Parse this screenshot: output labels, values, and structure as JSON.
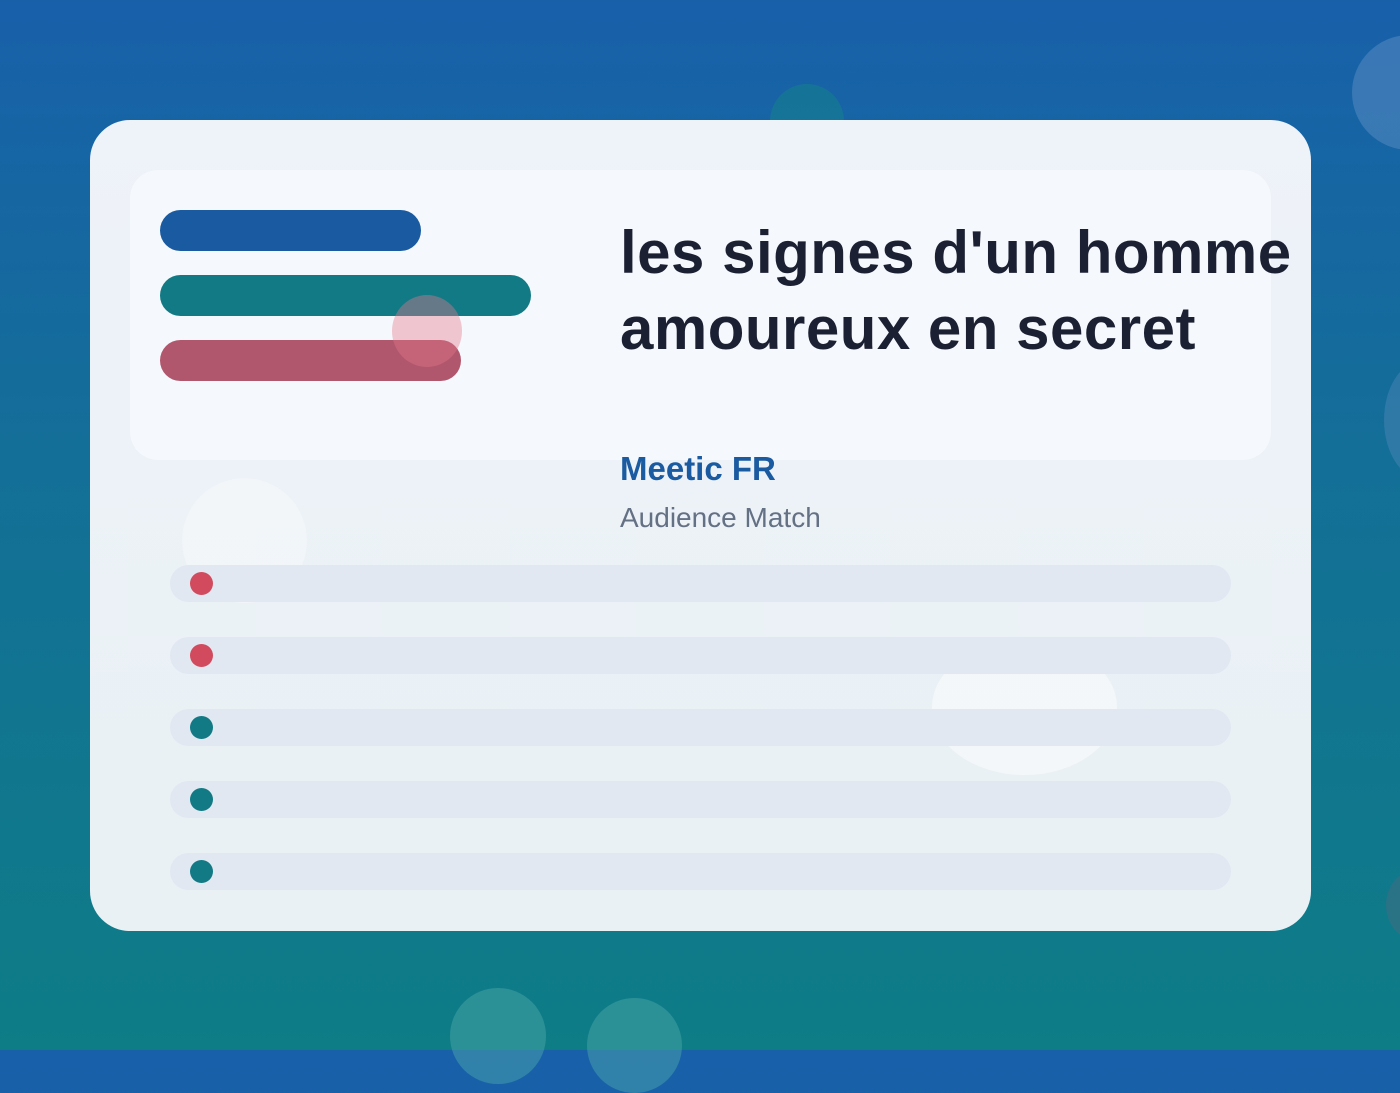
{
  "header": {
    "title": "les signes d'un homme amoureux en secret",
    "brand": "Meetic FR",
    "subtitle": "Audience Match"
  },
  "colors": {
    "brand_blue": "#1a5aa0",
    "teal": "#117a85",
    "rose": "#b0576d",
    "alert_red": "#d24a5e"
  },
  "list": {
    "rows": [
      {
        "status": "alert"
      },
      {
        "status": "alert"
      },
      {
        "status": "ok"
      },
      {
        "status": "ok"
      },
      {
        "status": "ok"
      }
    ]
  }
}
